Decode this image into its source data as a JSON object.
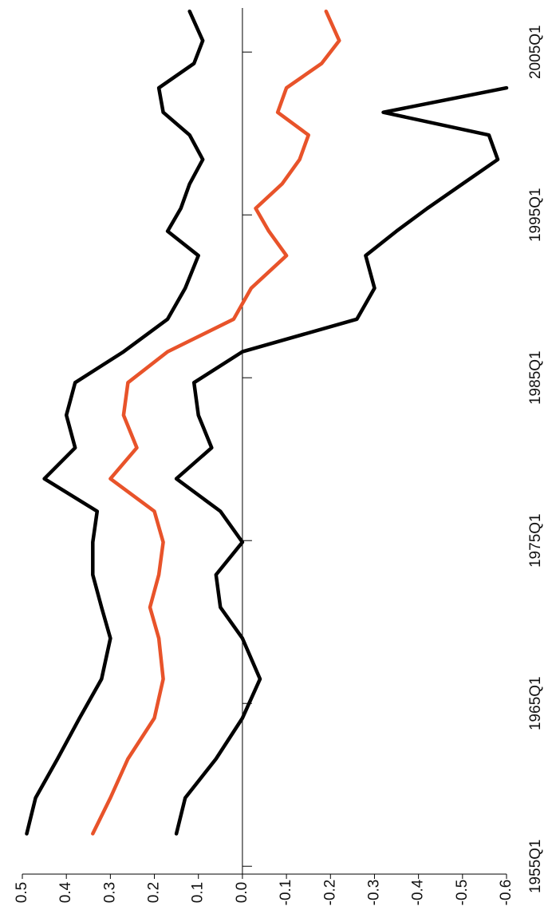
{
  "chart_data": {
    "type": "line",
    "orientation": "rotated",
    "x": [
      1957.0,
      1959.2,
      1961.6,
      1964.1,
      1966.5,
      1969.0,
      1970.9,
      1972.9,
      1974.9,
      1976.8,
      1978.8,
      1980.7,
      1982.7,
      1984.7,
      1986.6,
      1988.6,
      1990.5,
      1992.5,
      1994.0,
      1995.4,
      1996.9,
      1998.4,
      1999.9,
      2001.3,
      2002.8,
      2004.3,
      2005.7,
      2007.5
    ],
    "xlim": [
      1953,
      2008
    ],
    "xticks": [
      {
        "value": 1955,
        "label": "1955Q1"
      },
      {
        "value": 1965,
        "label": "1965Q1"
      },
      {
        "value": 1975,
        "label": "1975Q1"
      },
      {
        "value": 1985,
        "label": "1985Q1"
      },
      {
        "value": 1995,
        "label": "1995Q1"
      },
      {
        "value": 2005,
        "label": "2005Q1"
      }
    ],
    "ylim": [
      -0.6,
      0.5
    ],
    "yticks": [
      0.5,
      0.4,
      0.3,
      0.2,
      0.1,
      {
        "value": 0,
        "label": "0.0"
      },
      -0.1,
      -0.2,
      -0.3,
      -0.4,
      -0.5,
      -0.6
    ],
    "series": [
      {
        "color": "#000000",
        "values": [
          0.49,
          0.47,
          0.42,
          0.37,
          0.32,
          0.3,
          0.32,
          0.34,
          0.34,
          0.33,
          0.45,
          0.38,
          0.4,
          0.38,
          0.27,
          0.17,
          0.13,
          0.1,
          0.17,
          0.14,
          0.12,
          0.09,
          0.12,
          0.18,
          0.19,
          0.11,
          0.09,
          0.12
        ]
      },
      {
        "color": "#e8532a",
        "values": [
          0.34,
          0.3,
          0.26,
          0.2,
          0.18,
          0.19,
          0.21,
          0.19,
          0.18,
          0.2,
          0.3,
          0.24,
          0.27,
          0.26,
          0.17,
          0.02,
          -0.02,
          -0.1,
          -0.06,
          -0.03,
          -0.09,
          -0.13,
          -0.15,
          -0.08,
          -0.1,
          -0.18,
          -0.22,
          -0.19
        ]
      },
      {
        "color": "#000000",
        "values": [
          0.15,
          0.13,
          0.06,
          0.0,
          -0.04,
          0.0,
          0.05,
          0.06,
          0.0,
          0.05,
          0.15,
          0.07,
          0.1,
          0.11,
          0.0,
          -0.26,
          -0.3,
          -0.28,
          -0.35,
          -0.42,
          -0.5,
          -0.58,
          -0.56,
          -0.32,
          -0.6,
          null,
          null,
          null
        ]
      }
    ]
  }
}
